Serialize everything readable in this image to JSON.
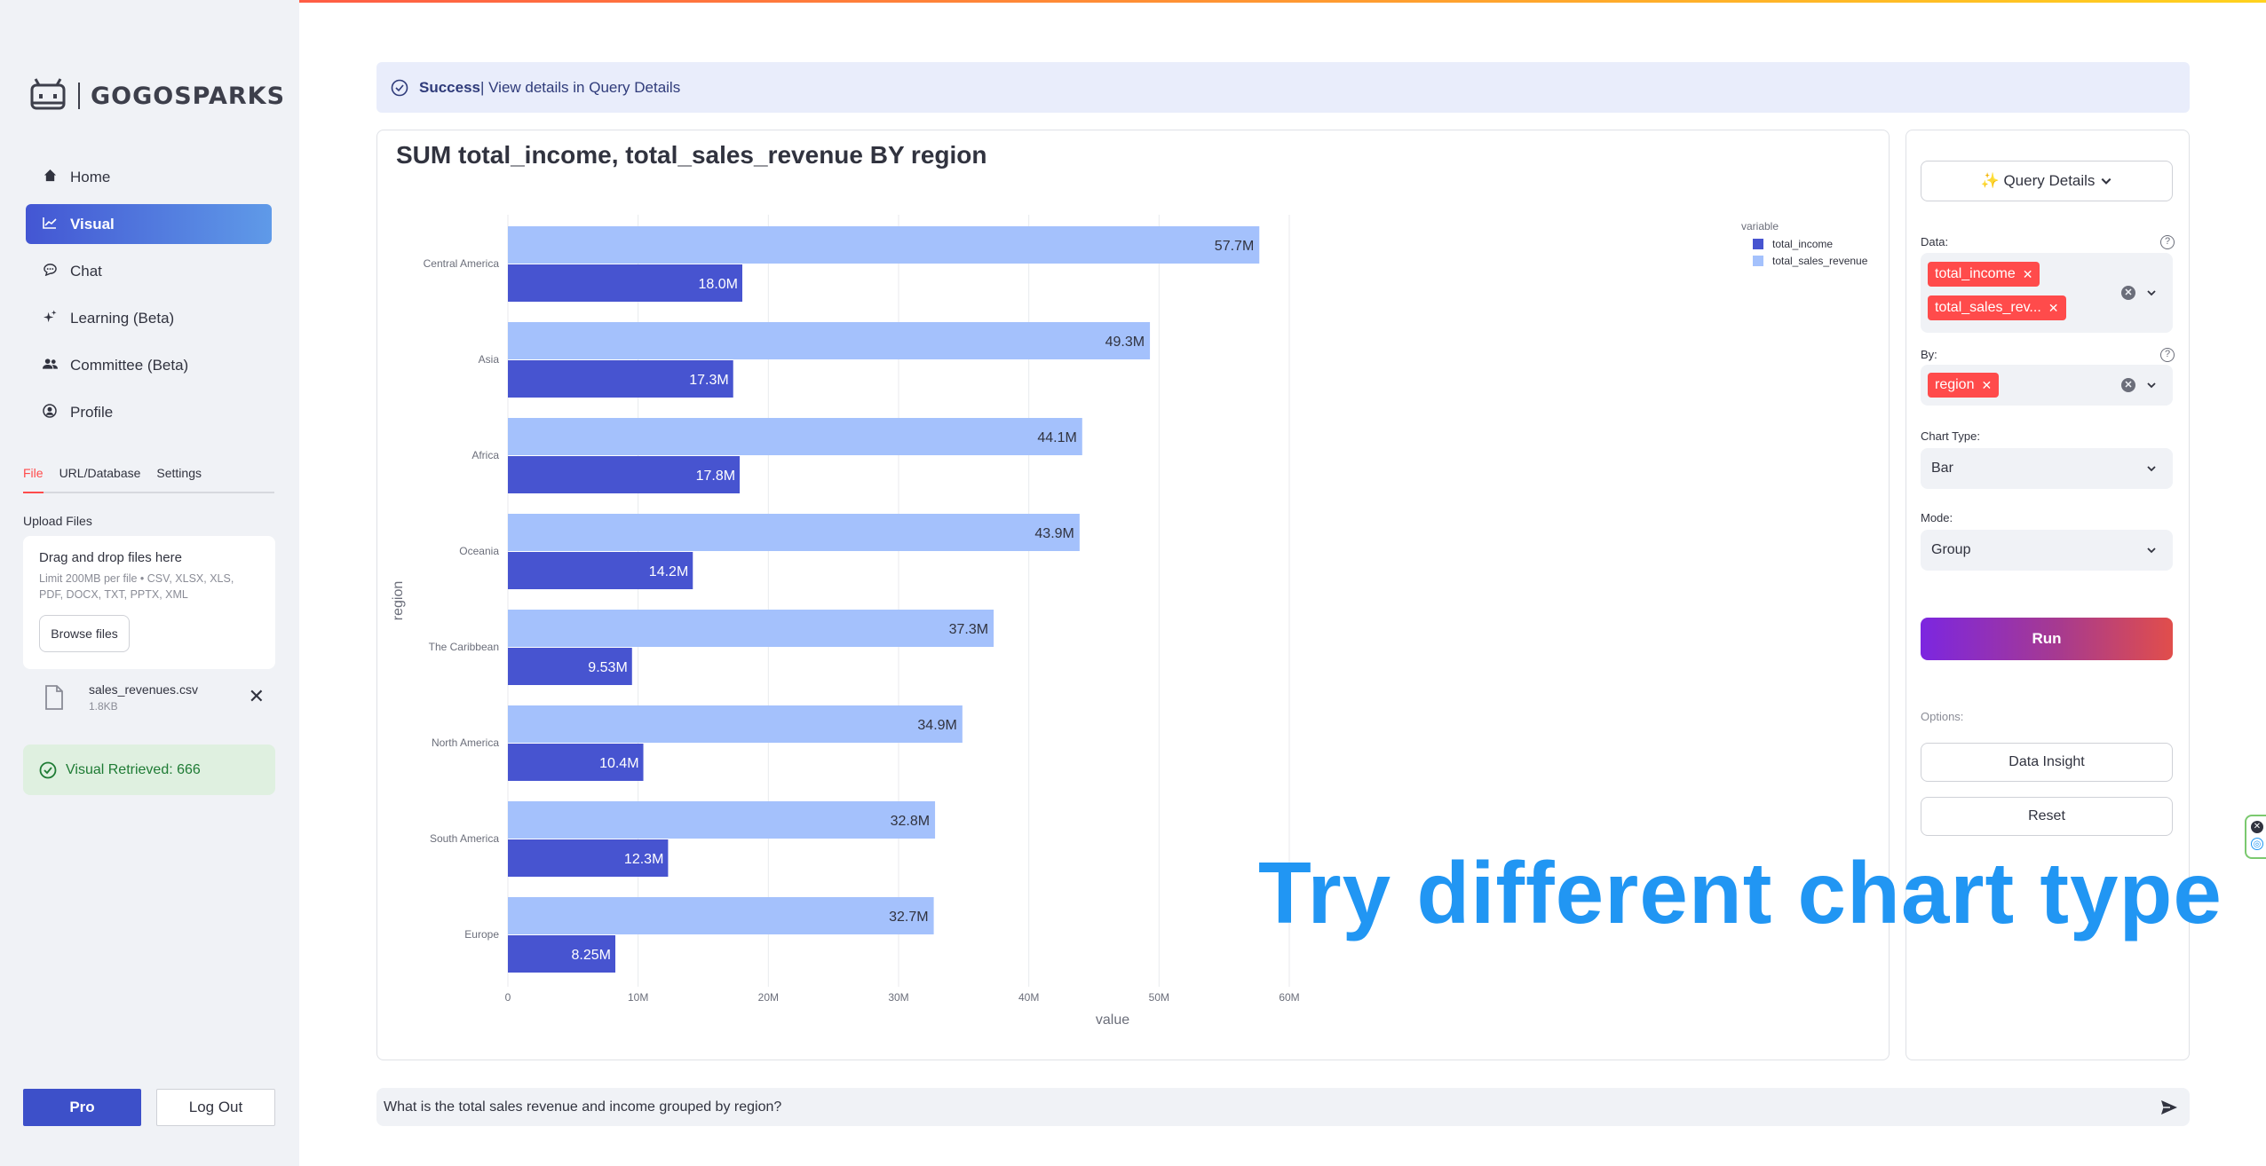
{
  "app": {
    "name": "GOGOSPARKS"
  },
  "sidebar": {
    "items": [
      {
        "label": "Home",
        "icon": "home-icon",
        "active": false
      },
      {
        "label": "Visual",
        "icon": "chart-line-icon",
        "active": true
      },
      {
        "label": "Chat",
        "icon": "chat-icon",
        "active": false
      },
      {
        "label": "Learning (Beta)",
        "icon": "sparkle-icon",
        "active": false
      },
      {
        "label": "Committee (Beta)",
        "icon": "users-icon",
        "active": false
      },
      {
        "label": "Profile",
        "icon": "profile-icon",
        "active": false
      }
    ],
    "source_tabs": [
      {
        "label": "File",
        "active": true
      },
      {
        "label": "URL/Database",
        "active": false
      },
      {
        "label": "Settings",
        "active": false
      }
    ],
    "upload": {
      "label": "Upload Files",
      "drop_title": "Drag and drop files here",
      "limit_text": "Limit 200MB per file • CSV, XLSX, XLS, PDF, DOCX, TXT, PPTX, XML",
      "browse_label": "Browse files",
      "file_name": "sales_revenues.csv",
      "file_size": "1.8KB"
    },
    "status": "Visual Retrieved: 666",
    "pro_label": "Pro",
    "logout_label": "Log Out"
  },
  "banner": {
    "strong": "Success",
    "text": " | View details in Query Details"
  },
  "chart_data": {
    "type": "bar",
    "orientation": "horizontal",
    "barmode": "group",
    "title": "SUM total_income, total_sales_revenue BY region",
    "xlabel": "value",
    "ylabel": "region",
    "categories": [
      "Central America",
      "Asia",
      "Africa",
      "Oceania",
      "The Caribbean",
      "North America",
      "South America",
      "Europe"
    ],
    "series": [
      {
        "name": "total_sales_revenue",
        "color": "#a4c1fc",
        "values": [
          57.7,
          49.3,
          44.1,
          43.9,
          37.3,
          34.9,
          32.8,
          32.7
        ],
        "labels": [
          "57.7M",
          "49.3M",
          "44.1M",
          "43.9M",
          "37.3M",
          "34.9M",
          "32.8M",
          "32.7M"
        ]
      },
      {
        "name": "total_income",
        "color": "#4754d0",
        "values": [
          18.0,
          17.3,
          17.8,
          14.2,
          9.53,
          10.4,
          12.3,
          8.25
        ],
        "labels": [
          "18.0M",
          "17.3M",
          "17.8M",
          "14.2M",
          "9.53M",
          "10.4M",
          "12.3M",
          "8.25M"
        ]
      }
    ],
    "xlim": [
      0,
      63
    ],
    "x_ticks": [
      0,
      10,
      20,
      30,
      40,
      50,
      60
    ],
    "x_tick_labels": [
      "0",
      "10M",
      "20M",
      "30M",
      "40M",
      "50M",
      "60M"
    ],
    "value_unit": "M",
    "legend": {
      "title": "variable",
      "placement": "top-right",
      "entries": [
        {
          "name": "total_income",
          "color": "#4754d0"
        },
        {
          "name": "total_sales_revenue",
          "color": "#a4c1fc"
        }
      ]
    },
    "grid": true
  },
  "query_panel": {
    "details_label": "✨ Query Details",
    "data_label": "Data:",
    "data_tags": [
      "total_income",
      "total_sales_rev..."
    ],
    "by_label": "By:",
    "by_tags": [
      "region"
    ],
    "chart_type_label": "Chart Type:",
    "chart_type_value": "Bar",
    "mode_label": "Mode:",
    "mode_value": "Group",
    "run_label": "Run",
    "options_label": "Options:",
    "insight_label": "Data Insight",
    "reset_label": "Reset"
  },
  "overlay_text": "Try different chart type",
  "chat": {
    "value": "What is the total sales revenue and income grouped by region?"
  },
  "colors": {
    "accent": "#ff4b4b",
    "primary": "#3d50c9",
    "overlay": "#2196f3",
    "success_bg": "#dff0e0"
  }
}
